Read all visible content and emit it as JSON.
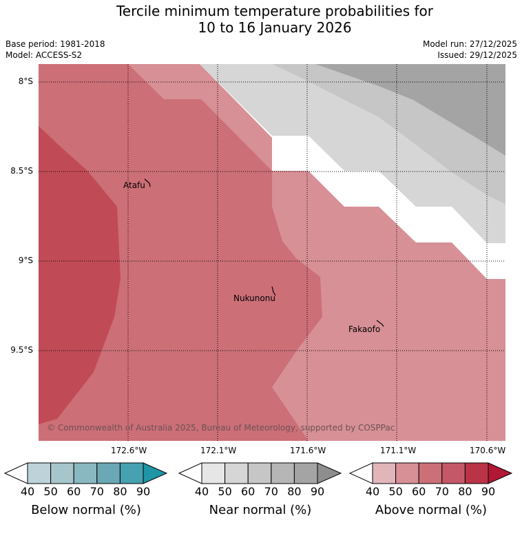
{
  "title": {
    "line1": "Tercile minimum temperature probabilities for",
    "line2": "10 to 16 January 2026"
  },
  "meta": {
    "base_period": "Base period: 1981-2018",
    "model": "Model: ACCESS-S2",
    "model_run": "Model run: 27/12/2025",
    "issued": "Issued: 29/12/2025"
  },
  "axes": {
    "latitudes": [
      "8°S",
      "8.5°S",
      "9°S",
      "9.5°S"
    ],
    "longitudes": [
      "172.6°W",
      "172.1°W",
      "171.6°W",
      "171.1°W",
      "170.6°W"
    ]
  },
  "places": [
    "Atafu",
    "Nukunonu",
    "Fakaofo"
  ],
  "copyright": "© Commonwealth of Australia 2025, Bureau of Meteorology, supported by COSPPac",
  "colorbars": [
    {
      "label": "Below normal (%)",
      "ticks": [
        "40",
        "50",
        "60",
        "70",
        "80",
        "90"
      ],
      "colors": [
        "#ffffff",
        "#bdd3d9",
        "#a6c6cc",
        "#89b8c1",
        "#6aa8b5",
        "#46a1b0",
        "#1f95a6"
      ]
    },
    {
      "label": "Near normal (%)",
      "ticks": [
        "40",
        "50",
        "60",
        "70",
        "80",
        "90"
      ],
      "colors": [
        "#ffffff",
        "#e6e6e6",
        "#d6d6d6",
        "#c6c6c6",
        "#b6b6b6",
        "#a4a4a4",
        "#8e8e8e"
      ]
    },
    {
      "label": "Above normal (%)",
      "ticks": [
        "40",
        "50",
        "60",
        "70",
        "80",
        "90"
      ],
      "colors": [
        "#ffffff",
        "#e1b6bb",
        "#d79096",
        "#cc6f77",
        "#c45868",
        "#bb3346",
        "#b01836"
      ]
    }
  ],
  "map_colors": {
    "above_50": "#d79096",
    "above_60": "#cc6f77",
    "above_70": "#c04a56",
    "near_50": "#d6d6d6",
    "near_60": "#c6c6c6",
    "near_80": "#a4a4a4"
  }
}
